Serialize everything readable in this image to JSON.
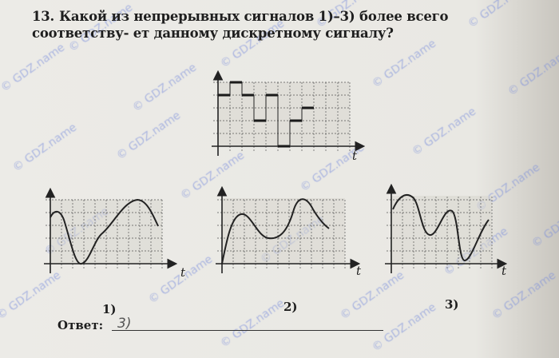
{
  "question": {
    "number": "13.",
    "text": "Какой из непрерывных сигналов 1)–3) более всего соответству- ет данному дискретному сигналу?"
  },
  "discrete_signal": {
    "axis_label": "t",
    "levels": [
      4,
      5,
      4,
      2,
      4,
      0,
      2,
      3
    ]
  },
  "options": [
    {
      "label": "1)",
      "axis_label": "t"
    },
    {
      "label": "2)",
      "axis_label": "t"
    },
    {
      "label": "3)",
      "axis_label": "t"
    }
  ],
  "answer": {
    "label": "Ответ:",
    "value": "3)"
  },
  "watermark": "© GDZ.name",
  "colors": {
    "ink": "#1e1e1e",
    "watermark": "#7f8fdc"
  }
}
